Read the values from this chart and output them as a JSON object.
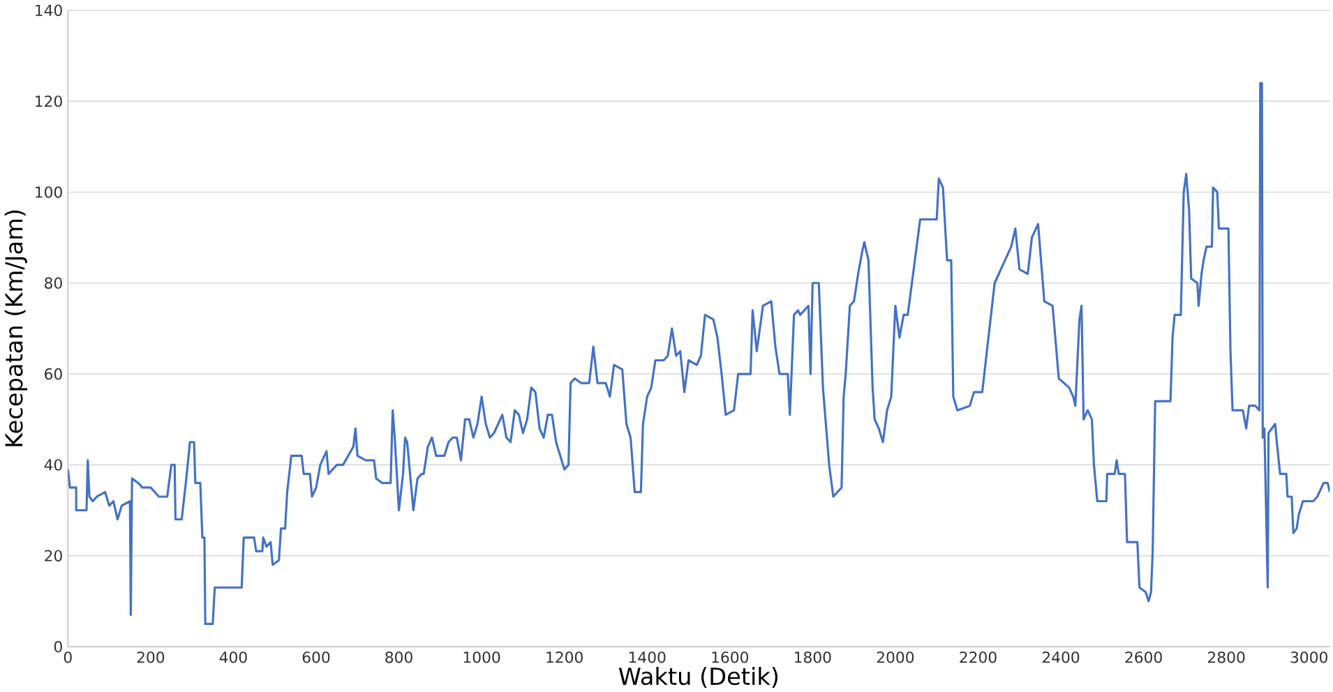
{
  "chart_data": {
    "type": "line",
    "xlabel": "Waktu (Detik)",
    "ylabel": "Kecepatan (Km/Jam)",
    "xlim": [
      0,
      3050
    ],
    "ylim": [
      0,
      140
    ],
    "xticks": [
      0,
      200,
      400,
      600,
      800,
      1000,
      1200,
      1400,
      1600,
      1800,
      2000,
      2200,
      2400,
      2600,
      2800,
      3000
    ],
    "yticks": [
      0,
      20,
      40,
      60,
      80,
      100,
      120,
      140
    ],
    "grid": "y",
    "marker": "none",
    "line_style": "solid",
    "series": [
      {
        "color": "#4472c4",
        "x": [
          0,
          5,
          20,
          20,
          45,
          48,
          52,
          60,
          70,
          90,
          100,
          110,
          120,
          130,
          150,
          152,
          155,
          170,
          180,
          200,
          220,
          240,
          250,
          258,
          260,
          275,
          285,
          295,
          305,
          308,
          320,
          325,
          330,
          332,
          350,
          355,
          420,
          425,
          450,
          455,
          470,
          472,
          480,
          490,
          495,
          510,
          515,
          525,
          530,
          540,
          565,
          570,
          585,
          590,
          600,
          610,
          625,
          630,
          650,
          665,
          690,
          695,
          700,
          720,
          740,
          745,
          760,
          780,
          785,
          790,
          800,
          810,
          815,
          820,
          835,
          845,
          855,
          860,
          870,
          880,
          890,
          910,
          920,
          930,
          940,
          950,
          960,
          970,
          980,
          990,
          1000,
          1010,
          1020,
          1030,
          1040,
          1050,
          1060,
          1070,
          1080,
          1090,
          1100,
          1110,
          1120,
          1130,
          1140,
          1150,
          1160,
          1170,
          1180,
          1200,
          1210,
          1215,
          1225,
          1240,
          1260,
          1270,
          1280,
          1300,
          1310,
          1320,
          1340,
          1350,
          1360,
          1370,
          1385,
          1390,
          1400,
          1410,
          1420,
          1440,
          1450,
          1460,
          1470,
          1480,
          1490,
          1500,
          1520,
          1530,
          1540,
          1560,
          1570,
          1580,
          1590,
          1610,
          1620,
          1650,
          1655,
          1665,
          1680,
          1700,
          1710,
          1720,
          1740,
          1745,
          1755,
          1765,
          1770,
          1790,
          1795,
          1800,
          1815,
          1825,
          1840,
          1850,
          1870,
          1875,
          1880,
          1890,
          1900,
          1910,
          1920,
          1925,
          1935,
          1945,
          1950,
          1960,
          1970,
          1980,
          1990,
          2000,
          2010,
          2020,
          2030,
          2040,
          2060,
          2100,
          2105,
          2115,
          2125,
          2135,
          2140,
          2150,
          2180,
          2190,
          2210,
          2230,
          2240,
          2260,
          2280,
          2290,
          2300,
          2320,
          2330,
          2345,
          2360,
          2380,
          2395,
          2420,
          2430,
          2435,
          2445,
          2450,
          2455,
          2465,
          2475,
          2480,
          2488,
          2510,
          2512,
          2530,
          2535,
          2540,
          2555,
          2560,
          2585,
          2590,
          2605,
          2612,
          2618,
          2622,
          2628,
          2665,
          2670,
          2675,
          2690,
          2697,
          2703,
          2710,
          2715,
          2730,
          2733,
          2740,
          2745,
          2752,
          2765,
          2768,
          2778,
          2782,
          2805,
          2810,
          2815,
          2840,
          2848,
          2855,
          2870,
          2880,
          2882,
          2886,
          2888,
          2892,
          2900,
          2902,
          2910,
          2918,
          2922,
          2930,
          2945,
          2948,
          2958,
          2962,
          2970,
          2975,
          2985,
          3000,
          3010,
          3020,
          3035,
          3045,
          3050
        ],
        "values": [
          39,
          35,
          35,
          30,
          30,
          41,
          33,
          32,
          33,
          34,
          31,
          32,
          28,
          31,
          32,
          7,
          37,
          36,
          35,
          35,
          33,
          33,
          40,
          40,
          28,
          28,
          36,
          45,
          45,
          36,
          36,
          24,
          24,
          5,
          5,
          13,
          13,
          24,
          24,
          21,
          21,
          24,
          22,
          23,
          18,
          19,
          26,
          26,
          34,
          42,
          42,
          38,
          38,
          33,
          35,
          40,
          43,
          38,
          40,
          40,
          44,
          48,
          42,
          41,
          41,
          37,
          36,
          36,
          52,
          46,
          30,
          38,
          46,
          45,
          30,
          37,
          38,
          38,
          44,
          46,
          42,
          42,
          45,
          46,
          46,
          41,
          50,
          50,
          46,
          49,
          55,
          49,
          46,
          47,
          49,
          51,
          46,
          45,
          52,
          51,
          47,
          50,
          57,
          56,
          48,
          46,
          51,
          51,
          45,
          39,
          40,
          58,
          59,
          58,
          58,
          66,
          58,
          58,
          55,
          62,
          61,
          49,
          46,
          34,
          34,
          49,
          55,
          57,
          63,
          63,
          64,
          70,
          64,
          65,
          56,
          63,
          62,
          64,
          73,
          72,
          68,
          60,
          51,
          52,
          60,
          60,
          74,
          65,
          75,
          76,
          66,
          60,
          60,
          51,
          73,
          74,
          73,
          75,
          60,
          80,
          80,
          57,
          40,
          33,
          35,
          55,
          60,
          75,
          76,
          82,
          87,
          89,
          85,
          57,
          50,
          48,
          45,
          52,
          55,
          75,
          68,
          73,
          73,
          80,
          94,
          94,
          103,
          101,
          85,
          85,
          55,
          52,
          53,
          56,
          56,
          72,
          80,
          84,
          88,
          92,
          83,
          82,
          90,
          93,
          76,
          75,
          59,
          57,
          55,
          53,
          72,
          75,
          50,
          52,
          50,
          40,
          32,
          32,
          38,
          38,
          41,
          38,
          38,
          23,
          23,
          13,
          12,
          10,
          12,
          21,
          54,
          54,
          68,
          73,
          73,
          100,
          104,
          96,
          81,
          80,
          75,
          82,
          85,
          88,
          88,
          101,
          100,
          92,
          92,
          65,
          52,
          52,
          48,
          53,
          53,
          52,
          124,
          124,
          46,
          48,
          13,
          47,
          48,
          49,
          45,
          38,
          38,
          33,
          33,
          25,
          26,
          29,
          32,
          32,
          32,
          33,
          36,
          36,
          34
        ]
      }
    ]
  }
}
